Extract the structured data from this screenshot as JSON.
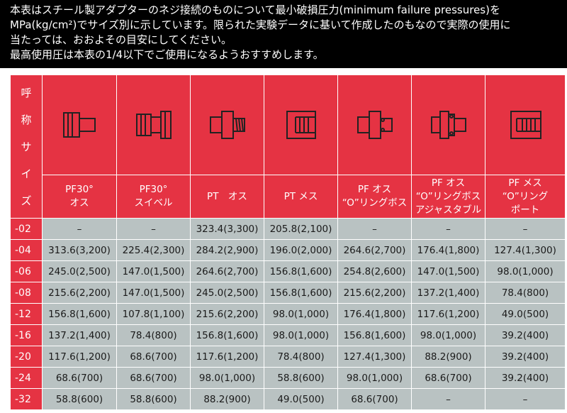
{
  "note": {
    "lines": [
      "本表はスチール製アダプターのネジ接続のものについて最小破損圧力(minimum failure pressures)を",
      "MPa(kg/cm²)でサイズ別に示しています。限られた実験データに基いて作成したのもなので実際の使用に",
      "当たっては、おおよその目安にしてください。",
      "最高使用圧は本表の1/4以下でご使用になるようおすすめします。"
    ]
  },
  "header": {
    "corner_chars": [
      "呼",
      "称",
      "サ",
      "イ",
      "ズ"
    ],
    "columns": [
      {
        "lines": [
          "PF30°",
          "オス"
        ],
        "icon": "male-fitting-icon"
      },
      {
        "lines": [
          "PF30°",
          "スイベル"
        ],
        "icon": "swivel-fitting-icon"
      },
      {
        "lines": [
          "PT　オス"
        ],
        "icon": "male-taper-fitting-icon"
      },
      {
        "lines": [
          "PT メス"
        ],
        "icon": "female-taper-fitting-icon"
      },
      {
        "lines": [
          "PF オス",
          "“O”リングボス"
        ],
        "icon": "oring-boss-fitting-icon"
      },
      {
        "lines": [
          "PF オス",
          "“O”リングボス",
          "アジャスタブル"
        ],
        "icon": "adjustable-oring-fitting-icon"
      },
      {
        "lines": [
          "PF メス",
          "“O”リング",
          "ポート"
        ],
        "icon": "oring-port-fitting-icon"
      }
    ]
  },
  "rows": [
    {
      "size": "-02",
      "values": [
        "–",
        "–",
        "323.4(3,300)",
        "205.8(2,100)",
        "–",
        "–",
        "–"
      ]
    },
    {
      "size": "-04",
      "values": [
        "313.6(3,200)",
        "225.4(2,300)",
        "284.2(2,900)",
        "196.0(2,000)",
        "264.6(2,700)",
        "176.4(1,800)",
        "127.4(1,300)"
      ]
    },
    {
      "size": "-06",
      "values": [
        "245.0(2,500)",
        "147.0(1,500)",
        "264.6(2,700)",
        "156.8(1,600)",
        "254.8(2,600)",
        "147.0(1,500)",
        "98.0(1,000)"
      ]
    },
    {
      "size": "-08",
      "values": [
        "215.6(2,200)",
        "147.0(1,500)",
        "245.0(2,500)",
        "156.8(1,600)",
        "215.6(2,200)",
        "137.2(1,400)",
        "78.4(800)"
      ]
    },
    {
      "size": "-12",
      "values": [
        "156.8(1,600)",
        "107.8(1,100)",
        "215.6(2,200)",
        "98.0(1,000)",
        "176.4(1,800)",
        "117.6(1,200)",
        "49.0(500)"
      ]
    },
    {
      "size": "-16",
      "values": [
        "137.2(1,400)",
        "78.4(800)",
        "156.8(1,600)",
        "98.0(1,000)",
        "156.8(1,600)",
        "98.0(1,000)",
        "39.2(400)"
      ]
    },
    {
      "size": "-20",
      "values": [
        "117.6(1,200)",
        "68.6(700)",
        "117.6(1,200)",
        "78.4(800)",
        "127.4(1,300)",
        "88.2(900)",
        "39.2(400)"
      ]
    },
    {
      "size": "-24",
      "values": [
        "68.6(700)",
        "68.6(700)",
        "98.0(1,000)",
        "58.8(600)",
        "98.0(1,000)",
        "68.6(700)",
        "39.2(400)"
      ]
    },
    {
      "size": "-32",
      "values": [
        "58.8(600)",
        "58.8(600)",
        "88.2(900)",
        "49.0(500)",
        "68.6(700)",
        "–",
        "–"
      ]
    }
  ]
}
